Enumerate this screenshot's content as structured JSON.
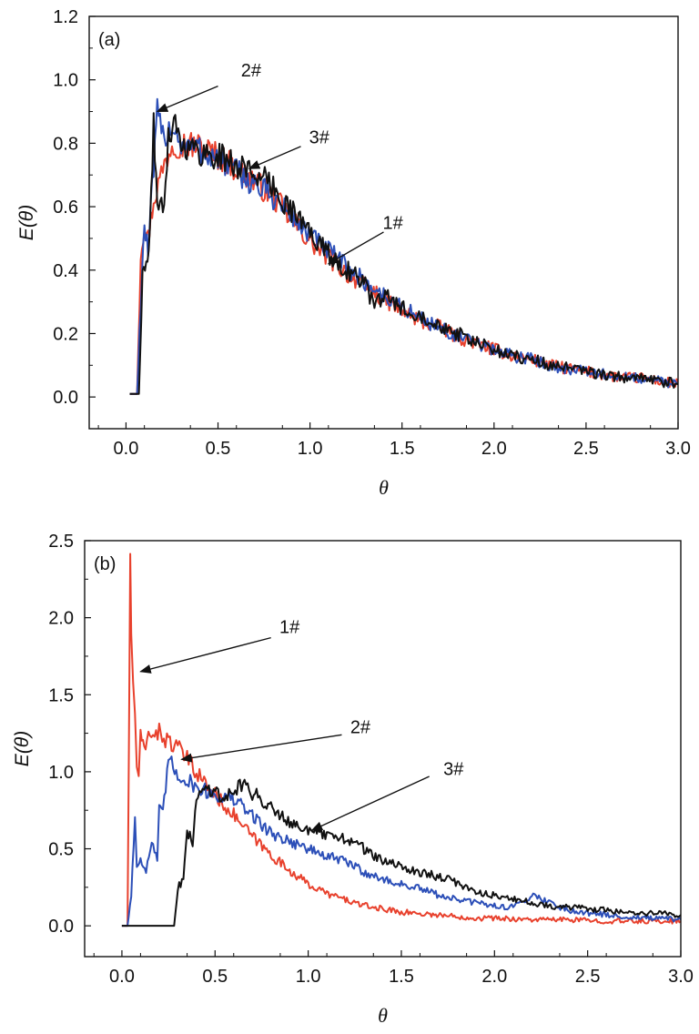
{
  "chart_data": [
    {
      "type": "line",
      "panel_label": "(a)",
      "xlabel": "θ",
      "ylabel": "E(θ)",
      "xlim": [
        -0.2,
        3.0
      ],
      "ylim": [
        -0.1,
        1.2
      ],
      "xticks": [
        "0.0",
        "0.5",
        "1.0",
        "1.5",
        "2.0",
        "2.5",
        "3.0"
      ],
      "yticks": [
        "0.0",
        "0.2",
        "0.4",
        "0.6",
        "0.8",
        "1.0",
        "1.2"
      ],
      "series": [
        {
          "name": "1#",
          "color": "#e8412d",
          "x": [
            0.02,
            0.06,
            0.08,
            0.1,
            0.12,
            0.15,
            0.2,
            0.25,
            0.3,
            0.4,
            0.5,
            0.6,
            0.7,
            0.8,
            0.9,
            1.0,
            1.1,
            1.2,
            1.3,
            1.4,
            1.5,
            1.6,
            1.7,
            1.8,
            1.9,
            2.0,
            2.1,
            2.2,
            2.3,
            2.4,
            2.5,
            2.6,
            2.7,
            2.8,
            2.9,
            3.0
          ],
          "y": [
            0.01,
            0.01,
            0.45,
            0.55,
            0.5,
            0.62,
            0.72,
            0.8,
            0.8,
            0.79,
            0.76,
            0.72,
            0.68,
            0.63,
            0.56,
            0.49,
            0.44,
            0.39,
            0.35,
            0.31,
            0.27,
            0.24,
            0.22,
            0.19,
            0.17,
            0.15,
            0.13,
            0.12,
            0.1,
            0.09,
            0.08,
            0.07,
            0.06,
            0.06,
            0.05,
            0.04
          ]
        },
        {
          "name": "2#",
          "color": "#2c4fb8",
          "x": [
            0.02,
            0.06,
            0.08,
            0.1,
            0.12,
            0.15,
            0.17,
            0.2,
            0.25,
            0.3,
            0.4,
            0.5,
            0.6,
            0.7,
            0.8,
            0.9,
            1.0,
            1.1,
            1.2,
            1.3,
            1.4,
            1.5,
            1.6,
            1.7,
            1.8,
            1.9,
            2.0,
            2.1,
            2.2,
            2.3,
            2.4,
            2.5,
            2.6,
            2.7,
            2.8,
            2.9,
            3.0
          ],
          "y": [
            0.01,
            0.01,
            0.3,
            0.55,
            0.45,
            0.72,
            0.89,
            0.82,
            0.86,
            0.8,
            0.78,
            0.75,
            0.71,
            0.67,
            0.63,
            0.57,
            0.51,
            0.46,
            0.41,
            0.36,
            0.32,
            0.28,
            0.25,
            0.22,
            0.19,
            0.17,
            0.15,
            0.13,
            0.12,
            0.1,
            0.09,
            0.08,
            0.07,
            0.06,
            0.06,
            0.05,
            0.04
          ]
        },
        {
          "name": "3#",
          "color": "#111111",
          "x": [
            0.02,
            0.07,
            0.09,
            0.11,
            0.13,
            0.15,
            0.17,
            0.2,
            0.23,
            0.26,
            0.3,
            0.4,
            0.5,
            0.6,
            0.7,
            0.8,
            0.9,
            1.0,
            1.1,
            1.2,
            1.3,
            1.35,
            1.4,
            1.5,
            1.6,
            1.7,
            1.8,
            1.9,
            2.0,
            2.1,
            2.2,
            2.3,
            2.4,
            2.5,
            2.6,
            2.7,
            2.8,
            2.9,
            3.0
          ],
          "y": [
            0.01,
            0.01,
            0.38,
            0.42,
            0.5,
            0.87,
            0.62,
            0.58,
            0.82,
            0.88,
            0.8,
            0.77,
            0.76,
            0.73,
            0.71,
            0.66,
            0.59,
            0.52,
            0.45,
            0.4,
            0.36,
            0.28,
            0.32,
            0.28,
            0.26,
            0.23,
            0.2,
            0.17,
            0.15,
            0.13,
            0.12,
            0.1,
            0.09,
            0.08,
            0.07,
            0.06,
            0.06,
            0.05,
            0.04
          ]
        }
      ],
      "annotations": [
        {
          "text": "2#",
          "text_at": [
            0.68,
            1.01
          ],
          "arrow_from": [
            0.5,
            0.98
          ],
          "arrow_to": [
            0.17,
            0.9
          ]
        },
        {
          "text": "3#",
          "text_at": [
            1.05,
            0.8
          ],
          "arrow_from": [
            0.95,
            0.79
          ],
          "arrow_to": [
            0.67,
            0.72
          ]
        },
        {
          "text": "1#",
          "text_at": [
            1.45,
            0.53
          ],
          "arrow_from": [
            1.4,
            0.52
          ],
          "arrow_to": [
            1.1,
            0.42
          ]
        }
      ]
    },
    {
      "type": "line",
      "panel_label": "(b)",
      "xlabel": "θ",
      "ylabel": "E(θ)",
      "xlim": [
        -0.2,
        3.0
      ],
      "ylim": [
        -0.2,
        2.5
      ],
      "xticks": [
        "0.0",
        "0.5",
        "1.0",
        "1.5",
        "2.0",
        "2.5",
        "3.0"
      ],
      "yticks": [
        "0.0",
        "0.5",
        "1.0",
        "1.5",
        "2.0",
        "2.5"
      ],
      "series": [
        {
          "name": "1#",
          "color": "#e8412d",
          "x": [
            0.0,
            0.03,
            0.045,
            0.05,
            0.06,
            0.07,
            0.08,
            0.09,
            0.1,
            0.12,
            0.15,
            0.2,
            0.25,
            0.3,
            0.35,
            0.4,
            0.45,
            0.5,
            0.6,
            0.7,
            0.8,
            0.9,
            1.0,
            1.1,
            1.2,
            1.3,
            1.4,
            1.5,
            1.6,
            1.7,
            1.8,
            1.9,
            2.0,
            2.2,
            2.4,
            2.6,
            2.8,
            3.0
          ],
          "y": [
            0.0,
            0.0,
            2.33,
            1.9,
            1.6,
            1.35,
            1.05,
            0.97,
            1.22,
            1.12,
            1.27,
            1.25,
            1.2,
            1.15,
            1.08,
            1.0,
            0.92,
            0.85,
            0.72,
            0.58,
            0.46,
            0.36,
            0.27,
            0.21,
            0.17,
            0.13,
            0.11,
            0.09,
            0.08,
            0.07,
            0.06,
            0.05,
            0.05,
            0.04,
            0.04,
            0.03,
            0.03,
            0.03
          ]
        },
        {
          "name": "2#",
          "color": "#2c4fb8",
          "x": [
            0.0,
            0.03,
            0.05,
            0.07,
            0.08,
            0.1,
            0.13,
            0.16,
            0.19,
            0.2,
            0.22,
            0.25,
            0.3,
            0.35,
            0.4,
            0.5,
            0.6,
            0.7,
            0.8,
            0.9,
            1.0,
            1.1,
            1.2,
            1.3,
            1.4,
            1.5,
            1.6,
            1.7,
            1.8,
            1.9,
            2.0,
            2.1,
            2.2,
            2.4,
            2.6,
            2.8,
            3.0
          ],
          "y": [
            0.0,
            0.0,
            0.2,
            0.7,
            0.38,
            0.45,
            0.35,
            0.55,
            0.42,
            0.75,
            0.72,
            1.08,
            0.98,
            0.95,
            0.9,
            0.85,
            0.82,
            0.72,
            0.6,
            0.55,
            0.5,
            0.45,
            0.42,
            0.35,
            0.3,
            0.27,
            0.24,
            0.2,
            0.17,
            0.15,
            0.13,
            0.12,
            0.2,
            0.1,
            0.07,
            0.05,
            0.04
          ]
        },
        {
          "name": "3#",
          "color": "#111111",
          "x": [
            0.0,
            0.28,
            0.3,
            0.33,
            0.35,
            0.38,
            0.4,
            0.45,
            0.5,
            0.55,
            0.6,
            0.65,
            0.7,
            0.8,
            0.9,
            1.0,
            1.1,
            1.2,
            1.3,
            1.4,
            1.5,
            1.6,
            1.7,
            1.8,
            1.9,
            2.0,
            2.1,
            2.2,
            2.3,
            2.4,
            2.5,
            2.6,
            2.7,
            2.8,
            2.9,
            3.0
          ],
          "y": [
            0.0,
            0.0,
            0.25,
            0.3,
            0.6,
            0.55,
            0.82,
            0.9,
            0.88,
            0.82,
            0.88,
            0.93,
            0.86,
            0.78,
            0.68,
            0.62,
            0.58,
            0.57,
            0.5,
            0.42,
            0.38,
            0.35,
            0.32,
            0.28,
            0.22,
            0.2,
            0.17,
            0.15,
            0.13,
            0.12,
            0.11,
            0.1,
            0.09,
            0.08,
            0.08,
            0.07
          ]
        }
      ],
      "annotations": [
        {
          "text": "1#",
          "text_at": [
            0.9,
            1.9
          ],
          "arrow_from": [
            0.8,
            1.87
          ],
          "arrow_to": [
            0.1,
            1.65
          ]
        },
        {
          "text": "2#",
          "text_at": [
            1.28,
            1.25
          ],
          "arrow_from": [
            1.18,
            1.24
          ],
          "arrow_to": [
            0.32,
            1.08
          ]
        },
        {
          "text": "3#",
          "text_at": [
            1.78,
            0.98
          ],
          "arrow_from": [
            1.65,
            0.97
          ],
          "arrow_to": [
            1.02,
            0.62
          ]
        }
      ]
    }
  ]
}
